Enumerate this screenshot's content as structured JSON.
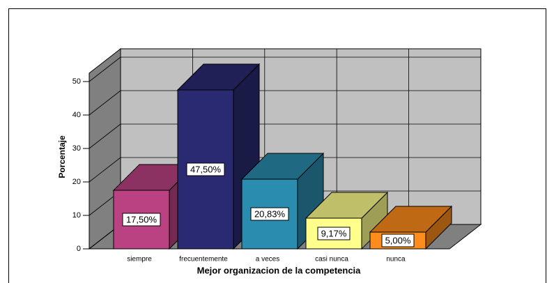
{
  "chart_data": {
    "type": "bar3d",
    "x_label": "Mejor organizacion de la competencia",
    "y_label": "Porcentaje",
    "categories": [
      "siempre",
      "frecuentemente",
      "a veces",
      "casi nunca",
      "nunca"
    ],
    "values": [
      17.5,
      47.5,
      20.83,
      9.17,
      5.0
    ],
    "value_labels": [
      "17,50%",
      "47,50%",
      "20,83%",
      "9,17%",
      "5,00%"
    ],
    "colors": [
      "#bb4282",
      "#2a2a72",
      "#2a8cae",
      "#ffff8c",
      "#ff8c1c"
    ],
    "ylim": [
      0,
      52.5
    ],
    "yticks": [
      0,
      10,
      20,
      30,
      40,
      50
    ],
    "grid": true
  }
}
